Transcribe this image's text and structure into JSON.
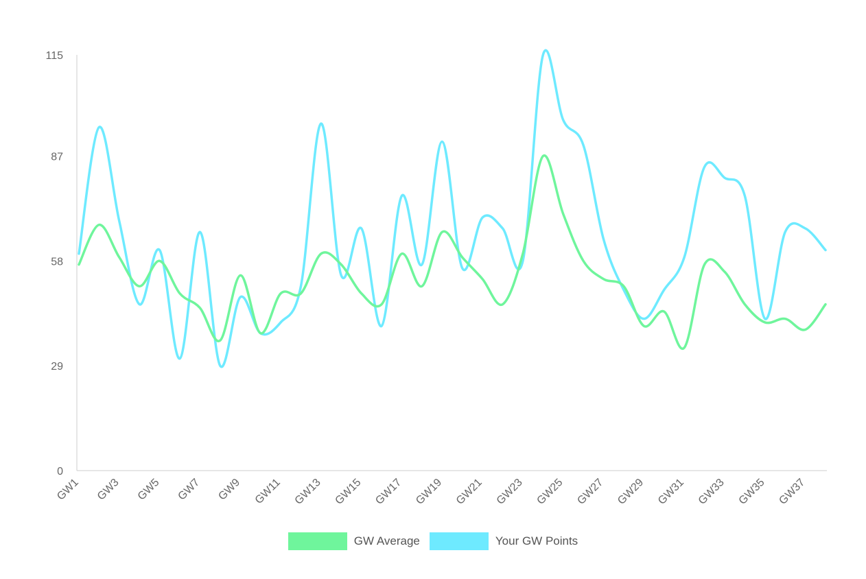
{
  "chart_data": {
    "type": "line",
    "x": [
      "GW1",
      "GW2",
      "GW3",
      "GW4",
      "GW5",
      "GW6",
      "GW7",
      "GW8",
      "GW9",
      "GW10",
      "GW11",
      "GW12",
      "GW13",
      "GW14",
      "GW15",
      "GW16",
      "GW17",
      "GW18",
      "GW19",
      "GW20",
      "GW21",
      "GW22",
      "GW23",
      "GW24",
      "GW25",
      "GW26",
      "GW27",
      "GW28",
      "GW29",
      "GW30",
      "GW31",
      "GW32",
      "GW33",
      "GW34",
      "GW35",
      "GW36",
      "GW37",
      "GW38"
    ],
    "x_tick_labels": [
      "GW1",
      "GW3",
      "GW5",
      "GW7",
      "GW9",
      "GW11",
      "GW13",
      "GW15",
      "GW17",
      "GW19",
      "GW21",
      "GW23",
      "GW25",
      "GW27",
      "GW29",
      "GW31",
      "GW33",
      "GW35",
      "GW37"
    ],
    "y_ticks": [
      0,
      29,
      58,
      87,
      115
    ],
    "ylim": [
      0,
      115
    ],
    "series": [
      {
        "name": "GW Average",
        "color": "#6ff59c",
        "values": [
          57,
          68,
          59,
          51,
          58,
          49,
          45,
          36,
          54,
          38,
          49,
          49,
          60,
          57,
          49,
          46,
          60,
          51,
          66,
          59,
          53,
          46,
          60,
          87,
          71,
          58,
          53,
          51,
          40,
          44,
          34,
          57,
          55,
          46,
          41,
          42,
          39,
          46
        ]
      },
      {
        "name": "Your GW Points",
        "color": "#6eeaff",
        "values": [
          60,
          95,
          69,
          46,
          61,
          31,
          66,
          29,
          48,
          38,
          41,
          51,
          96,
          54,
          67,
          40,
          76,
          57,
          91,
          56,
          70,
          67,
          58,
          115,
          97,
          90,
          64,
          50,
          42,
          50,
          59,
          84,
          81,
          76,
          42,
          66,
          67,
          61
        ]
      }
    ],
    "legend_position": "bottom",
    "grid": false
  }
}
